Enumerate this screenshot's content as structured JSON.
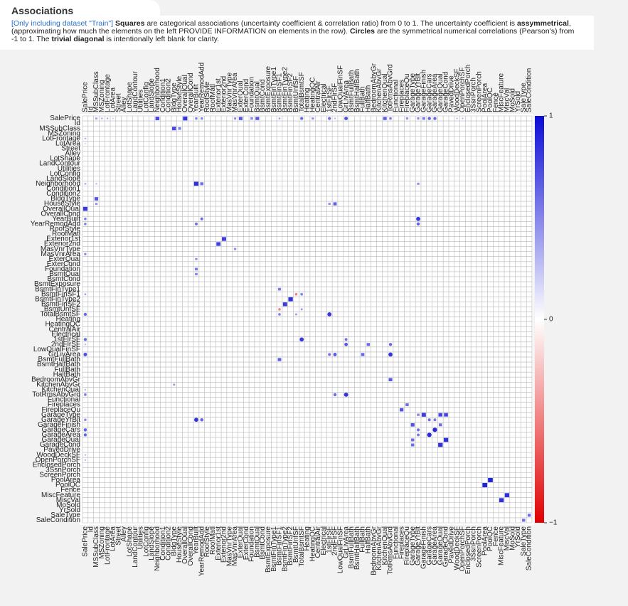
{
  "header": {
    "title": "Associations",
    "description": [
      {
        "text": "[Only including dataset \"Train\"] ",
        "style": "link"
      },
      {
        "text": "Squares",
        "style": "bold"
      },
      {
        "text": " are categorical associations (uncertainty coefficient & correlation ratio) from 0 to 1. The uncertainty coefficient is ",
        "style": "plain"
      },
      {
        "text": "assymmetrical",
        "style": "bold"
      },
      {
        "text": ", (approximating how much the elements on the left PROVIDE INFORMATION on elements in the row). ",
        "style": "plain"
      },
      {
        "text": "Circles",
        "style": "bold"
      },
      {
        "text": " are the symmetrical numerical correlations (Pearson's) from -1 to 1. The ",
        "style": "plain"
      },
      {
        "text": "trivial diagonal",
        "style": "bold"
      },
      {
        "text": " is intentionally left blank for clarity.",
        "style": "plain"
      }
    ]
  },
  "chart_data": {
    "type": "association-matrix",
    "variables": [
      "SalePrice",
      "Id",
      "MSSubClass",
      "MSZoning",
      "LotFrontage",
      "LotArea",
      "Street",
      "Alley",
      "LotShape",
      "LandContour",
      "Utilities",
      "LotConfig",
      "LandSlope",
      "Neighborhood",
      "Condition1",
      "Condition2",
      "BldgType",
      "HouseStyle",
      "OverallQual",
      "OverallCond",
      "YearBuilt",
      "YearRemodAdd",
      "RoofStyle",
      "RoofMatl",
      "Exterior1st",
      "Exterior2nd",
      "MasVnrType",
      "MasVnrArea",
      "ExterQual",
      "ExterCond",
      "Foundation",
      "BsmtQual",
      "BsmtCond",
      "BsmtExposure",
      "BsmtFinType1",
      "BsmtFinSF1",
      "BsmtFinType2",
      "BsmtFinSF2",
      "BsmtUnfSF",
      "TotalBsmtSF",
      "Heating",
      "HeatingQC",
      "CentralAir",
      "Electrical",
      "1stFlrSF",
      "2ndFlrSF",
      "LowQualFinSF",
      "GrLivArea",
      "BsmtFullBath",
      "BsmtHalfBath",
      "FullBath",
      "HalfBath",
      "BedroomAbvGr",
      "KitchenAbvGr",
      "KitchenQual",
      "TotRmsAbvGrd",
      "Functional",
      "Fireplaces",
      "FireplaceQu",
      "GarageType",
      "GarageYrBlt",
      "GarageFinish",
      "GarageCars",
      "GarageArea",
      "GarageQual",
      "GarageCond",
      "PavedDrive",
      "WoodDeckSF",
      "OpenPorchSF",
      "EnclosedPorch",
      "3SsnPorch",
      "ScreenPorch",
      "PoolArea",
      "PoolQC",
      "Fence",
      "MiscFeature",
      "MiscVal",
      "MoSold",
      "YrSold",
      "SaleType",
      "SaleCondition"
    ],
    "numerical": [
      "SalePrice",
      "Id",
      "LotFrontage",
      "LotArea",
      "YearBuilt",
      "YearRemodAdd",
      "MasVnrArea",
      "BsmtFinSF1",
      "BsmtFinSF2",
      "BsmtUnfSF",
      "TotalBsmtSF",
      "1stFlrSF",
      "2ndFlrSF",
      "LowQualFinSF",
      "GrLivArea",
      "TotRmsAbvGrd",
      "GarageYrBlt",
      "GarageCars",
      "GarageArea",
      "WoodDeckSF",
      "OpenPorchSF",
      "EnclosedPorch",
      "3SsnPorch",
      "ScreenPorch",
      "PoolArea",
      "MiscVal",
      "MoSold",
      "YrSold"
    ],
    "associations": [
      {
        "row": "SalePrice",
        "col": "Neighborhood",
        "value": 0.74
      },
      {
        "row": "SalePrice",
        "col": "OverallQual",
        "value": 0.82
      },
      {
        "row": "SalePrice",
        "col": "ExterQual",
        "value": 0.69
      },
      {
        "row": "SalePrice",
        "col": "BsmtQual",
        "value": 0.68
      },
      {
        "row": "SalePrice",
        "col": "KitchenQual",
        "value": 0.66
      },
      {
        "row": "SalePrice",
        "col": "Foundation",
        "value": 0.5
      },
      {
        "row": "SalePrice",
        "col": "GarageFinish",
        "value": 0.55
      },
      {
        "row": "SalePrice",
        "col": "HeatingQC",
        "value": 0.44
      },
      {
        "row": "SalePrice",
        "col": "FireplaceQu",
        "value": 0.45
      },
      {
        "row": "SalePrice",
        "col": "MSSubClass",
        "value": 0.4
      },
      {
        "row": "SalePrice",
        "col": "MSZoning",
        "value": 0.33
      },
      {
        "row": "SalePrice",
        "col": "YearBuilt",
        "value": 0.52
      },
      {
        "row": "SalePrice",
        "col": "YearRemodAdd",
        "value": 0.51
      },
      {
        "row": "SalePrice",
        "col": "TotalBsmtSF",
        "value": 0.61
      },
      {
        "row": "SalePrice",
        "col": "1stFlrSF",
        "value": 0.61
      },
      {
        "row": "SalePrice",
        "col": "GrLivArea",
        "value": 0.71
      },
      {
        "row": "SalePrice",
        "col": "TotRmsAbvGrd",
        "value": 0.53
      },
      {
        "row": "SalePrice",
        "col": "GarageCars",
        "value": 0.64
      },
      {
        "row": "SalePrice",
        "col": "GarageArea",
        "value": 0.62
      },
      {
        "row": "SalePrice",
        "col": "MasVnrArea",
        "value": 0.48
      },
      {
        "row": "SalePrice",
        "col": "GarageYrBlt",
        "value": 0.49
      },
      {
        "row": "SalePrice",
        "col": "BsmtFinSF1",
        "value": 0.39
      },
      {
        "row": "SalePrice",
        "col": "LotFrontage",
        "value": 0.35
      },
      {
        "row": "SalePrice",
        "col": "2ndFlrSF",
        "value": 0.32
      },
      {
        "row": "SalePrice",
        "col": "OpenPorchSF",
        "value": 0.32
      },
      {
        "row": "SalePrice",
        "col": "WoodDeckSF",
        "value": 0.32
      },
      {
        "row": "SalePrice",
        "col": "LotArea",
        "value": 0.26
      },
      {
        "row": "MSSubClass",
        "col": "BldgType",
        "value": 0.75
      },
      {
        "row": "MSSubClass",
        "col": "HouseStyle",
        "value": 0.55
      },
      {
        "row": "BldgType",
        "col": "MSSubClass",
        "value": 0.7
      },
      {
        "row": "HouseStyle",
        "col": "MSSubClass",
        "value": 0.45
      },
      {
        "row": "HouseStyle",
        "col": "2ndFlrSF",
        "value": 0.65
      },
      {
        "row": "HouseStyle",
        "col": "1stFlrSF",
        "value": 0.45
      },
      {
        "row": "Neighborhood",
        "col": "YearBuilt",
        "value": 0.85
      },
      {
        "row": "Neighborhood",
        "col": "YearRemodAdd",
        "value": 0.6
      },
      {
        "row": "Neighborhood",
        "col": "SalePrice",
        "value": 0.35
      },
      {
        "row": "Neighborhood",
        "col": "MSSubClass",
        "value": 0.3
      },
      {
        "row": "Neighborhood",
        "col": "GarageYrBlt",
        "value": 0.45
      },
      {
        "row": "OverallQual",
        "col": "SalePrice",
        "value": 0.82
      },
      {
        "row": "ExterQual",
        "col": "YearBuilt",
        "value": 0.45
      },
      {
        "row": "Foundation",
        "col": "YearBuilt",
        "value": 0.55
      },
      {
        "row": "BsmtQual",
        "col": "YearBuilt",
        "value": 0.5
      },
      {
        "row": "KitchenQual",
        "col": "SalePrice",
        "value": 0.3
      },
      {
        "row": "YearBuilt",
        "col": "YearRemodAdd",
        "value": 0.59
      },
      {
        "row": "YearBuilt",
        "col": "GarageYrBlt",
        "value": 0.83
      },
      {
        "row": "YearRemodAdd",
        "col": "GarageYrBlt",
        "value": 0.64
      },
      {
        "row": "Exterior1st",
        "col": "Exterior2nd",
        "value": 0.8
      },
      {
        "row": "Exterior2nd",
        "col": "Exterior1st",
        "value": 0.78
      },
      {
        "row": "MasVnrType",
        "col": "MasVnrArea",
        "value": 0.45
      },
      {
        "row": "BsmtFinType1",
        "col": "BsmtFinSF1",
        "value": 0.55
      },
      {
        "row": "BsmtFinType2",
        "col": "BsmtFinSF2",
        "value": 0.85
      },
      {
        "row": "BsmtFinSF2",
        "col": "BsmtFinType2",
        "value": 0.8
      },
      {
        "row": "BsmtFinSF1",
        "col": "BsmtUnfSF",
        "value": -0.5
      },
      {
        "row": "BsmtFinSF1",
        "col": "TotalBsmtSF",
        "value": 0.52
      },
      {
        "row": "BsmtUnfSF",
        "col": "TotalBsmtSF",
        "value": 0.42
      },
      {
        "row": "TotalBsmtSF",
        "col": "1stFlrSF",
        "value": 0.82
      },
      {
        "row": "1stFlrSF",
        "col": "GrLivArea",
        "value": 0.57
      },
      {
        "row": "2ndFlrSF",
        "col": "GrLivArea",
        "value": 0.69
      },
      {
        "row": "GrLivArea",
        "col": "TotRmsAbvGrd",
        "value": 0.83
      },
      {
        "row": "2ndFlrSF",
        "col": "TotRmsAbvGrd",
        "value": 0.62
      },
      {
        "row": "GrLivArea",
        "col": "FullBath",
        "value": 0.63
      },
      {
        "row": "2ndFlrSF",
        "col": "HalfBath",
        "value": 0.61
      },
      {
        "row": "BedroomAbvGr",
        "col": "TotRmsAbvGrd",
        "value": 0.68
      },
      {
        "row": "BsmtFullBath",
        "col": "BsmtFinSF1",
        "value": 0.65
      },
      {
        "row": "KitchenAbvGr",
        "col": "BldgType",
        "value": 0.4
      },
      {
        "row": "GarageCars",
        "col": "GarageArea",
        "value": 0.88
      },
      {
        "row": "GarageYrBlt",
        "col": "GarageCars",
        "value": 0.59
      },
      {
        "row": "GarageYrBlt",
        "col": "GarageArea",
        "value": 0.56
      },
      {
        "row": "GarageType",
        "col": "GarageFinish",
        "value": 0.8
      },
      {
        "row": "GarageType",
        "col": "GarageQual",
        "value": 0.75
      },
      {
        "row": "GarageType",
        "col": "GarageCond",
        "value": 0.75
      },
      {
        "row": "GarageFinish",
        "col": "GarageType",
        "value": 0.7
      },
      {
        "row": "GarageFinish",
        "col": "GarageQual",
        "value": 0.6
      },
      {
        "row": "GarageQual",
        "col": "GarageCond",
        "value": 0.85
      },
      {
        "row": "GarageCond",
        "col": "GarageQual",
        "value": 0.85
      },
      {
        "row": "GarageQual",
        "col": "GarageType",
        "value": 0.6
      },
      {
        "row": "GarageCond",
        "col": "GarageType",
        "value": 0.6
      },
      {
        "row": "GarageType",
        "col": "GarageYrBlt",
        "value": 0.5
      },
      {
        "row": "Fireplaces",
        "col": "FireplaceQu",
        "value": 0.6
      },
      {
        "row": "FireplaceQu",
        "col": "Fireplaces",
        "value": 0.7
      },
      {
        "row": "PoolArea",
        "col": "PoolQC",
        "value": 0.9
      },
      {
        "row": "PoolQC",
        "col": "PoolArea",
        "value": 0.9
      },
      {
        "row": "MiscFeature",
        "col": "MiscVal",
        "value": 0.85
      },
      {
        "row": "MiscVal",
        "col": "MiscFeature",
        "value": 0.85
      },
      {
        "row": "SaleType",
        "col": "SaleCondition",
        "value": 0.6
      },
      {
        "row": "SaleCondition",
        "col": "SaleType",
        "value": 0.6
      }
    ],
    "zlim": [
      -1,
      1
    ],
    "zticks": [
      {
        "value": -1,
        "label": "−1"
      },
      0,
      1
    ],
    "colormap": [
      "#e00000",
      "#ffffff",
      "#0b0bd6"
    ]
  }
}
